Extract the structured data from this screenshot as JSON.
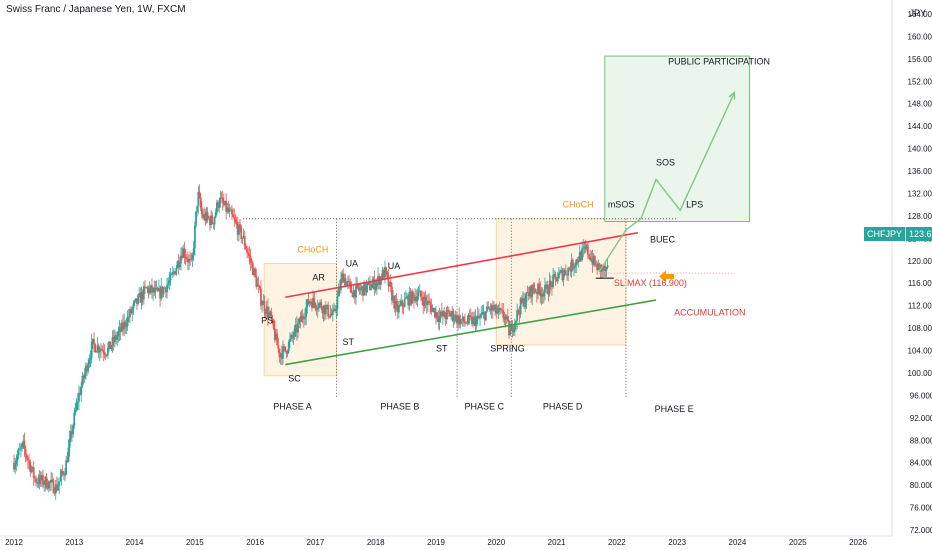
{
  "header": {
    "title": "Swiss Franc / Japanese Yen, 1W, FXCM",
    "currency": "JPY"
  },
  "price_badge": {
    "symbol": "CHFJPY",
    "value": "123.686"
  },
  "colors": {
    "up": "#26a69a",
    "down": "#ef5350",
    "resistance_line": "#f23645",
    "support_line": "#43a047",
    "orange_label": "#ff9800",
    "zone_fill": "#fff3e0",
    "projection_fill": "#e8f5e9"
  },
  "chart_data": {
    "type": "candlestick",
    "symbol": "CHFJPY",
    "timeframe": "1W",
    "ylim": [
      72,
      164
    ],
    "xlim": [
      2012.0,
      2026.6
    ],
    "grid": false,
    "y_ticks": [
      "72.000",
      "76.000",
      "80.000",
      "84.000",
      "88.000",
      "92.000",
      "96.000",
      "100.000",
      "104.000",
      "108.000",
      "112.000",
      "116.000",
      "120.000",
      "124.000",
      "128.000",
      "132.000",
      "136.000",
      "140.000",
      "144.000",
      "148.000",
      "152.000",
      "156.000",
      "160.000",
      "164.000"
    ],
    "x_ticks": [
      "2012",
      "2013",
      "2014",
      "2015",
      "2016",
      "2017",
      "2018",
      "2019",
      "2020",
      "2021",
      "2022",
      "2023",
      "2024",
      "2025",
      "2026"
    ],
    "price_path": [
      [
        2012.0,
        84.0
      ],
      [
        2012.15,
        87.0
      ],
      [
        2012.35,
        81.0
      ],
      [
        2012.55,
        80.5
      ],
      [
        2012.7,
        79.5
      ],
      [
        2012.85,
        83.0
      ],
      [
        2013.05,
        95.0
      ],
      [
        2013.3,
        105.0
      ],
      [
        2013.55,
        104.0
      ],
      [
        2013.8,
        108.0
      ],
      [
        2014.0,
        112.0
      ],
      [
        2014.2,
        115.0
      ],
      [
        2014.4,
        114.0
      ],
      [
        2014.6,
        116.5
      ],
      [
        2014.8,
        122.0
      ],
      [
        2014.95,
        119.0
      ],
      [
        2015.05,
        132.0
      ],
      [
        2015.12,
        128.0
      ],
      [
        2015.3,
        127.0
      ],
      [
        2015.4,
        131.0
      ],
      [
        2015.6,
        128.0
      ],
      [
        2015.8,
        124.0
      ],
      [
        2015.95,
        119.0
      ],
      [
        2016.1,
        113.0
      ],
      [
        2016.25,
        110.0
      ],
      [
        2016.4,
        103.5
      ],
      [
        2016.5,
        104.0
      ],
      [
        2016.7,
        108.0
      ],
      [
        2016.9,
        113.0
      ],
      [
        2017.1,
        112.0
      ],
      [
        2017.3,
        110.0
      ],
      [
        2017.45,
        117.5
      ],
      [
        2017.6,
        114.5
      ],
      [
        2017.8,
        115.0
      ],
      [
        2018.0,
        116.0
      ],
      [
        2018.15,
        118.0
      ],
      [
        2018.35,
        111.0
      ],
      [
        2018.5,
        113.0
      ],
      [
        2018.7,
        114.0
      ],
      [
        2018.9,
        112.0
      ],
      [
        2019.05,
        110.0
      ],
      [
        2019.25,
        110.5
      ],
      [
        2019.45,
        109.0
      ],
      [
        2019.7,
        109.5
      ],
      [
        2019.9,
        111.5
      ],
      [
        2020.15,
        110.0
      ],
      [
        2020.22,
        107.0
      ],
      [
        2020.4,
        112.0
      ],
      [
        2020.6,
        115.0
      ],
      [
        2020.8,
        114.5
      ],
      [
        2021.0,
        117.0
      ],
      [
        2021.2,
        118.5
      ],
      [
        2021.4,
        121.0
      ],
      [
        2021.5,
        122.0
      ],
      [
        2021.65,
        119.0
      ],
      [
        2021.85,
        118.0
      ]
    ],
    "trend_lines": [
      {
        "name": "resistance",
        "points": [
          [
            2016.5,
            113.5
          ],
          [
            2022.35,
            125.0
          ]
        ]
      },
      {
        "name": "support",
        "points": [
          [
            2016.5,
            101.5
          ],
          [
            2022.65,
            113.0
          ]
        ]
      }
    ],
    "level_lines": [
      {
        "y": 127.5,
        "x0": 2015.8,
        "x1": 2023.0,
        "style": "dotted"
      },
      {
        "y": 117.8,
        "x0": 2021.7,
        "x1": 2023.95,
        "style": "dotted-red"
      }
    ],
    "phase_separators": [
      2017.35,
      2019.35,
      2020.25,
      2022.15
    ],
    "annotations": [
      {
        "text": "CHoCH",
        "x": 2016.7,
        "y": 121.5,
        "color": "orange"
      },
      {
        "text": "CHoCH",
        "x": 2021.1,
        "y": 129.5,
        "color": "orange"
      },
      {
        "text": "AR",
        "x": 2016.95,
        "y": 116.5,
        "color": "dark"
      },
      {
        "text": "UA",
        "x": 2017.5,
        "y": 119.0,
        "color": "dark"
      },
      {
        "text": "UA",
        "x": 2018.2,
        "y": 118.5,
        "color": "dark"
      },
      {
        "text": "PS",
        "x": 2016.1,
        "y": 108.8,
        "color": "dark"
      },
      {
        "text": "SC",
        "x": 2016.55,
        "y": 98.5,
        "color": "dark"
      },
      {
        "text": "ST",
        "x": 2017.45,
        "y": 105.0,
        "color": "dark"
      },
      {
        "text": "ST",
        "x": 2019.0,
        "y": 103.8,
        "color": "dark"
      },
      {
        "text": "SPRING",
        "x": 2019.9,
        "y": 103.8,
        "color": "dark"
      },
      {
        "text": "mSOS",
        "x": 2021.85,
        "y": 129.5,
        "color": "dark"
      },
      {
        "text": "SOS",
        "x": 2022.65,
        "y": 137.0,
        "color": "dark"
      },
      {
        "text": "LPS",
        "x": 2023.15,
        "y": 129.5,
        "color": "dark"
      },
      {
        "text": "BUEC",
        "x": 2022.55,
        "y": 123.3,
        "color": "dark"
      },
      {
        "text": "SL MAX (116.900)",
        "x": 2021.95,
        "y": 115.5,
        "color": "red"
      },
      {
        "text": "ACCUMULATION",
        "x": 2022.95,
        "y": 110.2,
        "color": "red"
      },
      {
        "text": "PUBLIC PARTICIPATION",
        "x": 2022.85,
        "y": 155.0,
        "color": "dark"
      }
    ],
    "phases": [
      {
        "label": "PHASE A",
        "x": 2016.62,
        "y": 93.5
      },
      {
        "label": "PHASE B",
        "x": 2018.4,
        "y": 93.5
      },
      {
        "label": "PHASE C",
        "x": 2019.8,
        "y": 93.5
      },
      {
        "label": "PHASE D",
        "x": 2021.1,
        "y": 93.5
      },
      {
        "label": "PHASE E",
        "x": 2022.95,
        "y": 93.0
      }
    ],
    "zones": [
      {
        "kind": "accumulation-box",
        "x0": 2016.15,
        "x1": 2017.35,
        "y0": 99.5,
        "y1": 119.5
      },
      {
        "kind": "accumulation-box",
        "x0": 2020.0,
        "x1": 2022.15,
        "y0": 105.0,
        "y1": 127.5
      },
      {
        "kind": "projection-box",
        "x0": 2021.8,
        "x1": 2024.2,
        "y0": 127.0,
        "y1": 156.5
      }
    ],
    "projection_path": [
      [
        2021.7,
        118.0
      ],
      [
        2022.15,
        125.5
      ],
      [
        2022.4,
        127.5
      ],
      [
        2022.65,
        134.5
      ],
      [
        2023.05,
        129.0
      ],
      [
        2023.95,
        150.0
      ]
    ]
  }
}
